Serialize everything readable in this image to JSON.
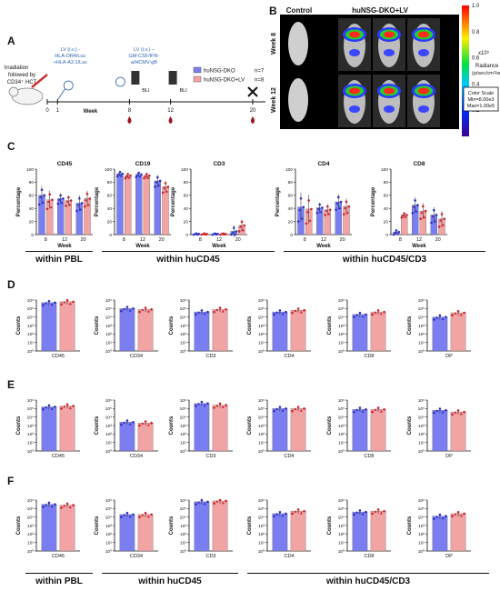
{
  "panels": {
    "A": "A",
    "B": "B",
    "C": "C",
    "D": "D",
    "E": "E",
    "F": "F"
  },
  "panel_a": {
    "irradiation": "Irradiation followed by CD34⁺ HCT",
    "lv1": [
      "LV (i.v.) -",
      "HLA-DR4/Luc",
      "+HLA-A2.1/Luc"
    ],
    "lv2": [
      "LV (i.v.) –",
      "GM-CSF/IFN-",
      "a/HCMV-gB"
    ],
    "bli": "BLI",
    "week_label": "Week",
    "weeks": [
      "0",
      "1",
      "8",
      "12",
      "20"
    ],
    "legend": [
      {
        "name": "huNSG-DKO",
        "n": "n=7",
        "color": "#7b7ef0"
      },
      {
        "name": "huNSG-DKO+LV",
        "n": "n=8",
        "color": "#f2a3a3"
      }
    ]
  },
  "panel_b": {
    "control": "Control",
    "treated": "huNSG-DKO+LV",
    "rows": [
      "Week 8",
      "Week 12"
    ],
    "colorbar_ticks": [
      "1.0",
      "0.8",
      "0.6",
      "0.4",
      "0.2"
    ],
    "colorbar_exp": "x10⁵",
    "colorbar_title": [
      "Radiance",
      "(p/sec/cm²/sr)"
    ],
    "scale_box": [
      "Color Scale",
      "Min=8.00e3",
      "Max=1.00e5"
    ]
  },
  "panel_c": {
    "ylabel": "Percentage",
    "xlabel": "Week",
    "yticks": [
      "0",
      "20",
      "40",
      "60",
      "80",
      "100"
    ],
    "weeks": [
      "8",
      "12",
      "20"
    ],
    "charts": [
      {
        "title": "CD45",
        "blue": [
          60,
          55,
          48
        ],
        "red": [
          53,
          52,
          55
        ],
        "err": [
          14,
          8,
          12
        ]
      },
      {
        "title": "CD19",
        "blue": [
          93,
          92,
          82
        ],
        "red": [
          90,
          90,
          73
        ],
        "err": [
          4,
          4,
          9
        ]
      },
      {
        "title": "CD3",
        "blue": [
          1,
          1,
          5
        ],
        "red": [
          1,
          1,
          14
        ],
        "err": [
          1,
          1,
          9
        ]
      },
      {
        "title": "CD4",
        "blue": [
          42,
          41,
          50
        ],
        "red": [
          39,
          38,
          43
        ],
        "err": [
          22,
          8,
          12
        ]
      },
      {
        "title": "CD8",
        "blue": [
          4,
          45,
          30
        ],
        "red": [
          30,
          36,
          24
        ],
        "err": [
          4,
          12,
          12
        ]
      }
    ],
    "groups": [
      "within PBL",
      "within huCD45",
      "within huCD45/CD3"
    ]
  },
  "count_panels": {
    "ylabel": "Counts",
    "yticks": [
      "10⁰",
      "10¹",
      "10²",
      "10³",
      "10⁴",
      "10⁵",
      "10⁶"
    ],
    "categories": [
      "CD45",
      "CD34",
      "CD3",
      "CD4",
      "CD8",
      "DP"
    ],
    "D": [
      [
        5.7,
        5.8
      ],
      [
        5.0,
        4.9
      ],
      [
        4.6,
        4.9
      ],
      [
        4.6,
        4.8
      ],
      [
        4.3,
        4.6
      ],
      [
        4.0,
        4.5
      ]
    ],
    "E": [
      [
        5.2,
        5.3
      ],
      [
        3.4,
        3.3
      ],
      [
        5.6,
        5.4
      ],
      [
        5.0,
        5.0
      ],
      [
        4.9,
        4.9
      ],
      [
        4.8,
        4.6
      ]
    ],
    "F": [
      [
        5.5,
        5.4
      ],
      [
        4.3,
        4.3
      ],
      [
        5.8,
        5.9
      ],
      [
        4.4,
        4.7
      ],
      [
        4.6,
        4.7
      ],
      [
        4.1,
        4.4
      ]
    ],
    "groups": [
      "within PBL",
      "within huCD45",
      "within huCD45/CD3"
    ]
  }
}
